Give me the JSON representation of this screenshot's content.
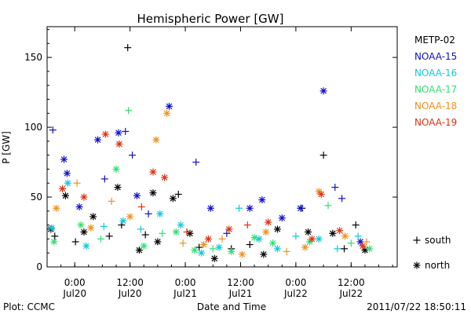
{
  "chart_data": {
    "type": "scatter",
    "title": "Hemispheric Power [GW]",
    "ylabel": "P [GW]",
    "xlabel": "Date and Time",
    "ylim": [
      0,
      172
    ],
    "xlim": [
      "2011-07-19 18:00",
      "2011-07-22 22:00"
    ],
    "y_ticks": [
      0,
      50,
      100,
      150
    ],
    "x_ticks": [
      {
        "x": "2011-07-20 00:00",
        "time": "0:00",
        "date": "Jul20"
      },
      {
        "x": "2011-07-20 12:00",
        "time": "12:00",
        "date": "Jul20"
      },
      {
        "x": "2011-07-21 00:00",
        "time": "0:00",
        "date": "Jul21"
      },
      {
        "x": "2011-07-21 12:00",
        "time": "12:00",
        "date": "Jul21"
      },
      {
        "x": "2011-07-22 00:00",
        "time": "0:00",
        "date": "Jul22"
      },
      {
        "x": "2011-07-22 12:00",
        "time": "12:00",
        "date": "Jul22"
      }
    ],
    "marker_legend": [
      {
        "symbol": "+",
        "label": "south"
      },
      {
        "symbol": "*",
        "label": "north"
      }
    ],
    "series": [
      {
        "name": "METP-02",
        "color": "#000000",
        "points": [
          {
            "x": "2011-07-19 18:49",
            "y": 27,
            "m": "*"
          },
          {
            "x": "2011-07-19 19:40",
            "y": 22,
            "m": "+"
          },
          {
            "x": "2011-07-19 22:00",
            "y": 51,
            "m": "*"
          },
          {
            "x": "2011-07-20 00:10",
            "y": 18,
            "m": "+"
          },
          {
            "x": "2011-07-20 02:00",
            "y": 25,
            "m": "*"
          },
          {
            "x": "2011-07-20 04:00",
            "y": 36,
            "m": "*"
          },
          {
            "x": "2011-07-20 07:30",
            "y": 22,
            "m": "+"
          },
          {
            "x": "2011-07-20 09:20",
            "y": 57,
            "m": "*"
          },
          {
            "x": "2011-07-20 10:10",
            "y": 30,
            "m": "+"
          },
          {
            "x": "2011-07-20 11:30",
            "y": 157,
            "m": "+"
          },
          {
            "x": "2011-07-20 14:00",
            "y": 12,
            "m": "*"
          },
          {
            "x": "2011-07-20 15:20",
            "y": 23,
            "m": "+"
          },
          {
            "x": "2011-07-20 17:00",
            "y": 53,
            "m": "*"
          },
          {
            "x": "2011-07-20 18:00",
            "y": 18,
            "m": "*"
          },
          {
            "x": "2011-07-20 21:20",
            "y": 49,
            "m": "*"
          },
          {
            "x": "2011-07-20 22:30",
            "y": 52,
            "m": "+"
          },
          {
            "x": "2011-07-21 01:00",
            "y": 24,
            "m": "*"
          },
          {
            "x": "2011-07-21 03:00",
            "y": 14,
            "m": "+"
          },
          {
            "x": "2011-07-21 06:20",
            "y": 6,
            "m": "*"
          },
          {
            "x": "2011-07-21 10:00",
            "y": 13,
            "m": "+"
          },
          {
            "x": "2011-07-21 14:00",
            "y": 16,
            "m": "+"
          },
          {
            "x": "2011-07-21 17:00",
            "y": 9,
            "m": "*"
          },
          {
            "x": "2011-07-21 20:00",
            "y": 27,
            "m": "*"
          },
          {
            "x": "2011-07-22 01:20",
            "y": 42,
            "m": "+"
          },
          {
            "x": "2011-07-22 02:40",
            "y": 25,
            "m": "*"
          },
          {
            "x": "2011-07-22 06:00",
            "y": 80,
            "m": "+"
          },
          {
            "x": "2011-07-22 08:00",
            "y": 24,
            "m": "*"
          },
          {
            "x": "2011-07-22 10:30",
            "y": 13,
            "m": "+"
          },
          {
            "x": "2011-07-22 13:00",
            "y": 30,
            "m": "+"
          },
          {
            "x": "2011-07-22 15:00",
            "y": 12,
            "m": "*"
          }
        ]
      },
      {
        "name": "NOAA-15",
        "color": "#1010c8",
        "points": [
          {
            "x": "2011-07-19 19:15",
            "y": 98,
            "m": "+"
          },
          {
            "x": "2011-07-19 21:40",
            "y": 77,
            "m": "*"
          },
          {
            "x": "2011-07-19 22:20",
            "y": 67,
            "m": "*"
          },
          {
            "x": "2011-07-20 01:00",
            "y": 43,
            "m": "*"
          },
          {
            "x": "2011-07-20 05:00",
            "y": 91,
            "m": "*"
          },
          {
            "x": "2011-07-20 06:30",
            "y": 63,
            "m": "+"
          },
          {
            "x": "2011-07-20 09:30",
            "y": 96,
            "m": "*"
          },
          {
            "x": "2011-07-20 11:00",
            "y": 97,
            "m": "+"
          },
          {
            "x": "2011-07-20 12:30",
            "y": 80,
            "m": "+"
          },
          {
            "x": "2011-07-20 13:30",
            "y": 51,
            "m": "*"
          },
          {
            "x": "2011-07-20 16:00",
            "y": 38,
            "m": "+"
          },
          {
            "x": "2011-07-20 20:30",
            "y": 115,
            "m": "*"
          },
          {
            "x": "2011-07-21 02:20",
            "y": 75,
            "m": "+"
          },
          {
            "x": "2011-07-21 05:30",
            "y": 42,
            "m": "*"
          },
          {
            "x": "2011-07-21 09:00",
            "y": 24,
            "m": "+"
          },
          {
            "x": "2011-07-21 14:00",
            "y": 42,
            "m": "*"
          },
          {
            "x": "2011-07-21 16:40",
            "y": 48,
            "m": "*"
          },
          {
            "x": "2011-07-21 21:00",
            "y": 35,
            "m": "*"
          },
          {
            "x": "2011-07-22 01:00",
            "y": 42,
            "m": "*"
          },
          {
            "x": "2011-07-22 06:00",
            "y": 126,
            "m": "*"
          },
          {
            "x": "2011-07-22 08:30",
            "y": 57,
            "m": "+"
          },
          {
            "x": "2011-07-22 10:00",
            "y": 49,
            "m": "+"
          },
          {
            "x": "2011-07-22 14:00",
            "y": 18,
            "m": "*"
          }
        ]
      },
      {
        "name": "NOAA-16",
        "color": "#10c8e0",
        "points": [
          {
            "x": "2011-07-19 19:00",
            "y": 28,
            "m": "*"
          },
          {
            "x": "2011-07-19 22:30",
            "y": 60,
            "m": "*"
          },
          {
            "x": "2011-07-20 02:30",
            "y": 15,
            "m": "*"
          },
          {
            "x": "2011-07-20 06:20",
            "y": 29,
            "m": "+"
          },
          {
            "x": "2011-07-20 10:30",
            "y": 33,
            "m": "*"
          },
          {
            "x": "2011-07-20 14:20",
            "y": 27,
            "m": "+"
          },
          {
            "x": "2011-07-20 18:30",
            "y": 38,
            "m": "*"
          },
          {
            "x": "2011-07-20 23:00",
            "y": 30,
            "m": "*"
          },
          {
            "x": "2011-07-21 03:30",
            "y": 10,
            "m": "*"
          },
          {
            "x": "2011-07-21 07:20",
            "y": 14,
            "m": "*"
          },
          {
            "x": "2011-07-21 11:40",
            "y": 42,
            "m": "+"
          },
          {
            "x": "2011-07-21 16:00",
            "y": 20,
            "m": "*"
          },
          {
            "x": "2011-07-21 20:00",
            "y": 13,
            "m": "*"
          },
          {
            "x": "2011-07-22 00:00",
            "y": 22,
            "m": "+"
          },
          {
            "x": "2011-07-22 05:00",
            "y": 20,
            "m": "*"
          },
          {
            "x": "2011-07-22 09:00",
            "y": 13,
            "m": "+"
          },
          {
            "x": "2011-07-22 13:30",
            "y": 22,
            "m": "+"
          }
        ]
      },
      {
        "name": "NOAA-17",
        "color": "#30e070",
        "points": [
          {
            "x": "2011-07-19 19:30",
            "y": 18,
            "m": "*"
          },
          {
            "x": "2011-07-20 01:20",
            "y": 30,
            "m": "*"
          },
          {
            "x": "2011-07-20 05:40",
            "y": 20,
            "m": "+"
          },
          {
            "x": "2011-07-20 09:00",
            "y": 70,
            "m": "*"
          },
          {
            "x": "2011-07-20 11:40",
            "y": 112,
            "m": "+"
          },
          {
            "x": "2011-07-20 15:00",
            "y": 15,
            "m": "*"
          },
          {
            "x": "2011-07-20 19:00",
            "y": 24,
            "m": "+"
          },
          {
            "x": "2011-07-20 22:00",
            "y": 25,
            "m": "*"
          },
          {
            "x": "2011-07-21 02:00",
            "y": 12,
            "m": "*"
          },
          {
            "x": "2011-07-21 06:00",
            "y": 13,
            "m": "+"
          },
          {
            "x": "2011-07-21 10:00",
            "y": 11,
            "m": "*"
          },
          {
            "x": "2011-07-21 15:00",
            "y": 21,
            "m": "*"
          },
          {
            "x": "2011-07-21 19:00",
            "y": 17,
            "m": "*"
          },
          {
            "x": "2011-07-22 03:00",
            "y": 18,
            "m": "*"
          },
          {
            "x": "2011-07-22 07:00",
            "y": 44,
            "m": "+"
          },
          {
            "x": "2011-07-22 12:00",
            "y": 17,
            "m": "+"
          },
          {
            "x": "2011-07-22 16:00",
            "y": 13,
            "m": "*"
          }
        ]
      },
      {
        "name": "NOAA-18",
        "color": "#f09020",
        "points": [
          {
            "x": "2011-07-19 20:00",
            "y": 42,
            "m": "*"
          },
          {
            "x": "2011-07-20 00:30",
            "y": 60,
            "m": "+"
          },
          {
            "x": "2011-07-20 03:30",
            "y": 28,
            "m": "*"
          },
          {
            "x": "2011-07-20 08:00",
            "y": 47,
            "m": "+"
          },
          {
            "x": "2011-07-20 12:00",
            "y": 36,
            "m": "*"
          },
          {
            "x": "2011-07-20 17:40",
            "y": 91,
            "m": "*"
          },
          {
            "x": "2011-07-20 20:00",
            "y": 110,
            "m": "*"
          },
          {
            "x": "2011-07-20 23:30",
            "y": 17,
            "m": "+"
          },
          {
            "x": "2011-07-21 04:00",
            "y": 16,
            "m": "*"
          },
          {
            "x": "2011-07-21 08:00",
            "y": 20,
            "m": "+"
          },
          {
            "x": "2011-07-21 12:20",
            "y": 9,
            "m": "*"
          },
          {
            "x": "2011-07-21 17:30",
            "y": 25,
            "m": "*"
          },
          {
            "x": "2011-07-21 22:00",
            "y": 11,
            "m": "+"
          },
          {
            "x": "2011-07-22 02:00",
            "y": 14,
            "m": "*"
          },
          {
            "x": "2011-07-22 05:00",
            "y": 54,
            "m": "*"
          },
          {
            "x": "2011-07-22 10:40",
            "y": 22,
            "m": "*"
          },
          {
            "x": "2011-07-22 15:20",
            "y": 18,
            "m": "+"
          }
        ]
      },
      {
        "name": "NOAA-19",
        "color": "#e03010",
        "points": [
          {
            "x": "2011-07-19 21:20",
            "y": 56,
            "m": "*"
          },
          {
            "x": "2011-07-20 02:00",
            "y": 50,
            "m": "*"
          },
          {
            "x": "2011-07-20 06:40",
            "y": 95,
            "m": "*"
          },
          {
            "x": "2011-07-20 09:40",
            "y": 88,
            "m": "*"
          },
          {
            "x": "2011-07-20 14:30",
            "y": 43,
            "m": "+"
          },
          {
            "x": "2011-07-20 19:30",
            "y": 64,
            "m": "*"
          },
          {
            "x": "2011-07-20 17:00",
            "y": 68,
            "m": "*"
          },
          {
            "x": "2011-07-21 00:20",
            "y": 25,
            "m": "+"
          },
          {
            "x": "2011-07-21 05:00",
            "y": 20,
            "m": "*"
          },
          {
            "x": "2011-07-21 09:30",
            "y": 27,
            "m": "*"
          },
          {
            "x": "2011-07-21 13:30",
            "y": 30,
            "m": "+"
          },
          {
            "x": "2011-07-21 18:00",
            "y": 32,
            "m": "*"
          },
          {
            "x": "2011-07-22 03:30",
            "y": 20,
            "m": "*"
          },
          {
            "x": "2011-07-22 05:30",
            "y": 52,
            "m": "*"
          },
          {
            "x": "2011-07-22 09:30",
            "y": 26,
            "m": "*"
          },
          {
            "x": "2011-07-22 14:30",
            "y": 15,
            "m": "*"
          }
        ]
      }
    ]
  },
  "footer": {
    "plot_label": "Plot: CCMC",
    "timestamp": "2011/07/22 18:50:11"
  }
}
